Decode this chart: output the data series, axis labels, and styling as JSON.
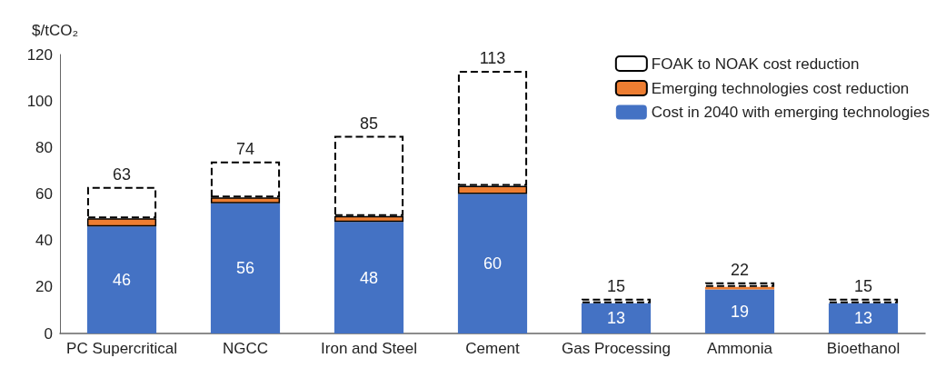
{
  "chart_data": {
    "type": "bar",
    "stacked": true,
    "ylabel": "$/tCO₂",
    "categories": [
      "PC Supercritical",
      "NGCC",
      "Iron and Steel",
      "Cement",
      "Gas Processing",
      "Ammonia",
      "Bioethanol"
    ],
    "series": [
      {
        "name": "Cost in 2040 with emerging technologies",
        "color": "#4472c4",
        "values": [
          46,
          56,
          48,
          60,
          13,
          19,
          13
        ],
        "value_labels": [
          "46",
          "56",
          "48",
          "60",
          "13",
          "19",
          "13"
        ]
      },
      {
        "name": "Emerging technologies cost reduction",
        "color": "#ed7d31",
        "values": [
          3.5,
          2.5,
          2.5,
          3.5,
          null,
          1,
          null
        ]
      },
      {
        "name": "FOAK to NOAK cost reduction",
        "color": "#ffffff",
        "line_style": "dashed",
        "values": [
          13.5,
          15.5,
          34.5,
          49.5,
          2,
          2,
          2
        ]
      }
    ],
    "totals": [
      "63",
      "74",
      "85",
      "113",
      "15",
      "22",
      "15"
    ],
    "ylim": [
      0,
      120
    ],
    "yticks": [
      0,
      20,
      40,
      60,
      80,
      100,
      120
    ],
    "grid": false,
    "legend": "top right"
  }
}
